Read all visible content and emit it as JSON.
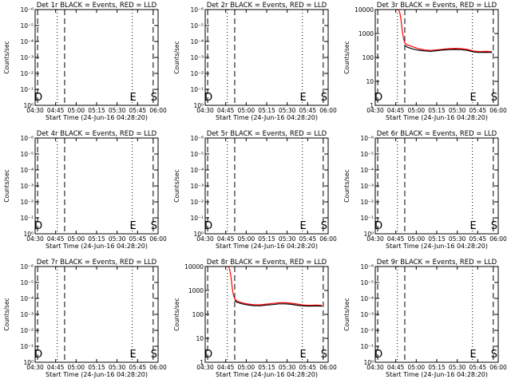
{
  "figure": {
    "background": "#ffffff",
    "events_color": "#000000",
    "lld_color": "#ff0000",
    "panels_per_row": 3
  },
  "chart_data": [
    {
      "type": "line",
      "title": "Det 1r BLACK = Events, RED = LLD",
      "xlabel": "Start Time (24-Jun-16 04:28:20)",
      "ylabel": "Counts/sec",
      "x_ticks": [
        "04:30",
        "04:45",
        "05:00",
        "05:15",
        "05:30",
        "05:45",
        "06:00"
      ],
      "y_ticks": [
        "10⁰",
        "10⁻¹",
        "10⁻²",
        "10⁻³",
        "10⁻⁴",
        "10⁻⁵",
        "10⁻⁶"
      ],
      "y_scale": "log",
      "ylim": [
        0,
        6
      ],
      "xlim": [
        0,
        100
      ],
      "markers": [
        {
          "x": 2,
          "style": "dash",
          "label": "D"
        },
        {
          "x": 18,
          "style": "dot",
          "label": ""
        },
        {
          "x": 24,
          "style": "dash",
          "label": ""
        },
        {
          "x": 79,
          "style": "dot",
          "label": "E"
        },
        {
          "x": 96,
          "style": "dash",
          "label": "S"
        }
      ],
      "series": []
    },
    {
      "type": "line",
      "title": "Det 2r BLACK = Events, RED = LLD",
      "xlabel": "Start Time (24-Jun-16 04:28:20)",
      "ylabel": "Counts/sec",
      "x_ticks": [
        "04:30",
        "04:45",
        "05:00",
        "05:15",
        "05:30",
        "05:45",
        "06:00"
      ],
      "y_ticks": [
        "10⁰",
        "10⁻¹",
        "10⁻²",
        "10⁻³",
        "10⁻⁴",
        "10⁻⁵",
        "10⁻⁶"
      ],
      "y_scale": "log",
      "ylim": [
        0,
        6
      ],
      "xlim": [
        0,
        100
      ],
      "markers": [
        {
          "x": 2,
          "style": "dash",
          "label": "D"
        },
        {
          "x": 18,
          "style": "dot",
          "label": ""
        },
        {
          "x": 24,
          "style": "dash",
          "label": ""
        },
        {
          "x": 79,
          "style": "dot",
          "label": "E"
        },
        {
          "x": 96,
          "style": "dash",
          "label": "S"
        }
      ],
      "series": []
    },
    {
      "type": "line",
      "title": "Det 3r BLACK = Events, RED = LLD",
      "xlabel": "Start Time (24-Jun-16 04:28:20)",
      "ylabel": "Counts/sec",
      "x_ticks": [
        "04:30",
        "04:45",
        "05:00",
        "05:15",
        "05:30",
        "05:45",
        "06:00"
      ],
      "y_ticks": [
        "1",
        "10",
        "100",
        "1000",
        "10000"
      ],
      "y_scale": "log",
      "ylim": [
        0,
        4.15
      ],
      "xlim": [
        0,
        100
      ],
      "markers": [
        {
          "x": 2,
          "style": "dash",
          "label": "D"
        },
        {
          "x": 18,
          "style": "dot",
          "label": ""
        },
        {
          "x": 24,
          "style": "dash",
          "label": ""
        },
        {
          "x": 79,
          "style": "dot",
          "label": "E"
        },
        {
          "x": 96,
          "style": "dash",
          "label": "S"
        }
      ],
      "series": [
        {
          "color": "red",
          "x": [
            19,
            20,
            21,
            22,
            23,
            24,
            26,
            30,
            35,
            40,
            45,
            50,
            55,
            60,
            65,
            70,
            75,
            80,
            85,
            90,
            95
          ],
          "y": [
            4.15,
            4.0,
            3.7,
            3.2,
            2.9,
            2.7,
            2.62,
            2.55,
            2.46,
            2.4,
            2.38,
            2.4,
            2.43,
            2.46,
            2.47,
            2.46,
            2.42,
            2.35,
            2.33,
            2.34,
            2.33
          ]
        },
        {
          "color": "black",
          "x": [
            24,
            26,
            30,
            35,
            40,
            45,
            50,
            55,
            60,
            65,
            70,
            75,
            80,
            85,
            90,
            95
          ],
          "y": [
            2.6,
            2.52,
            2.45,
            2.39,
            2.36,
            2.34,
            2.37,
            2.4,
            2.41,
            2.42,
            2.41,
            2.38,
            2.31,
            2.29,
            2.3,
            2.29
          ]
        }
      ]
    },
    {
      "type": "line",
      "title": "Det 4r BLACK = Events, RED = LLD",
      "xlabel": "Start Time (24-Jun-16 04:28:20)",
      "ylabel": "Counts/sec",
      "x_ticks": [
        "04:30",
        "04:45",
        "05:00",
        "05:15",
        "05:30",
        "05:45",
        "06:00"
      ],
      "y_ticks": [
        "10⁰",
        "10⁻¹",
        "10⁻²",
        "10⁻³",
        "10⁻⁴",
        "10⁻⁵",
        "10⁻⁶"
      ],
      "y_scale": "log",
      "ylim": [
        0,
        6
      ],
      "xlim": [
        0,
        100
      ],
      "markers": [
        {
          "x": 2,
          "style": "dash",
          "label": "D"
        },
        {
          "x": 18,
          "style": "dot",
          "label": ""
        },
        {
          "x": 24,
          "style": "dash",
          "label": ""
        },
        {
          "x": 79,
          "style": "dot",
          "label": "E"
        },
        {
          "x": 96,
          "style": "dash",
          "label": "S"
        }
      ],
      "series": []
    },
    {
      "type": "line",
      "title": "Det 5r BLACK = Events, RED = LLD",
      "xlabel": "Start Time (24-Jun-16 04:28:20)",
      "ylabel": "Counts/sec",
      "x_ticks": [
        "04:30",
        "04:45",
        "05:00",
        "05:15",
        "05:30",
        "05:45",
        "06:00"
      ],
      "y_ticks": [
        "10⁰",
        "10⁻¹",
        "10⁻²",
        "10⁻³",
        "10⁻⁴",
        "10⁻⁵",
        "10⁻⁶"
      ],
      "y_scale": "log",
      "ylim": [
        0,
        6
      ],
      "xlim": [
        0,
        100
      ],
      "markers": [
        {
          "x": 2,
          "style": "dash",
          "label": "D"
        },
        {
          "x": 18,
          "style": "dot",
          "label": ""
        },
        {
          "x": 24,
          "style": "dash",
          "label": ""
        },
        {
          "x": 79,
          "style": "dot",
          "label": "E"
        },
        {
          "x": 96,
          "style": "dash",
          "label": "S"
        }
      ],
      "series": []
    },
    {
      "type": "line",
      "title": "Det 6r BLACK = Events, RED = LLD",
      "xlabel": "Start Time (24-Jun-16 04:28:20)",
      "ylabel": "Counts/sec",
      "x_ticks": [
        "04:30",
        "04:45",
        "05:00",
        "05:15",
        "05:30",
        "05:45",
        "06:00"
      ],
      "y_ticks": [
        "10⁰",
        "10⁻¹",
        "10⁻²",
        "10⁻³",
        "10⁻⁴",
        "10⁻⁵",
        "10⁻⁶"
      ],
      "y_scale": "log",
      "ylim": [
        0,
        6
      ],
      "xlim": [
        0,
        100
      ],
      "markers": [
        {
          "x": 2,
          "style": "dash",
          "label": "D"
        },
        {
          "x": 18,
          "style": "dot",
          "label": ""
        },
        {
          "x": 24,
          "style": "dash",
          "label": ""
        },
        {
          "x": 79,
          "style": "dot",
          "label": "E"
        },
        {
          "x": 96,
          "style": "dash",
          "label": "S"
        }
      ],
      "series": []
    },
    {
      "type": "line",
      "title": "Det 7r BLACK = Events, RED = LLD",
      "xlabel": "Start Time (24-Jun-16 04:28:20)",
      "ylabel": "Counts/sec",
      "x_ticks": [
        "04:30",
        "04:45",
        "05:00",
        "05:15",
        "05:30",
        "05:45",
        "06:00"
      ],
      "y_ticks": [
        "10⁰",
        "10⁻¹",
        "10⁻²",
        "10⁻³",
        "10⁻⁴",
        "10⁻⁵",
        "10⁻⁶"
      ],
      "y_scale": "log",
      "ylim": [
        0,
        6
      ],
      "xlim": [
        0,
        100
      ],
      "markers": [
        {
          "x": 2,
          "style": "dash",
          "label": "D"
        },
        {
          "x": 18,
          "style": "dot",
          "label": ""
        },
        {
          "x": 24,
          "style": "dash",
          "label": ""
        },
        {
          "x": 79,
          "style": "dot",
          "label": "E"
        },
        {
          "x": 96,
          "style": "dash",
          "label": "S"
        }
      ],
      "series": []
    },
    {
      "type": "line",
      "title": "Det 8r BLACK = Events, RED = LLD",
      "xlabel": "Start Time (24-Jun-16 04:28:20)",
      "ylabel": "Counts/sec",
      "x_ticks": [
        "04:30",
        "04:45",
        "05:00",
        "05:15",
        "05:30",
        "05:45",
        "06:00"
      ],
      "y_ticks": [
        "1",
        "10",
        "100",
        "1000",
        "10000"
      ],
      "y_scale": "log",
      "ylim": [
        0,
        4.15
      ],
      "xlim": [
        0,
        100
      ],
      "markers": [
        {
          "x": 2,
          "style": "dash",
          "label": "D"
        },
        {
          "x": 18,
          "style": "dot",
          "label": ""
        },
        {
          "x": 24,
          "style": "dash",
          "label": ""
        },
        {
          "x": 79,
          "style": "dot",
          "label": "E"
        },
        {
          "x": 96,
          "style": "dash",
          "label": "S"
        }
      ],
      "series": [
        {
          "color": "red",
          "x": [
            19,
            20,
            21,
            22,
            23,
            24,
            26,
            30,
            35,
            40,
            45,
            50,
            55,
            60,
            65,
            70,
            75,
            80,
            85,
            90,
            95
          ],
          "y": [
            4.15,
            4.0,
            3.7,
            3.2,
            2.9,
            2.75,
            2.65,
            2.58,
            2.52,
            2.49,
            2.49,
            2.52,
            2.55,
            2.58,
            2.58,
            2.56,
            2.52,
            2.48,
            2.47,
            2.48,
            2.47
          ]
        },
        {
          "color": "black",
          "x": [
            24,
            26,
            30,
            35,
            40,
            45,
            50,
            55,
            60,
            65,
            70,
            75,
            80,
            85,
            90,
            95
          ],
          "y": [
            2.68,
            2.6,
            2.53,
            2.48,
            2.45,
            2.45,
            2.48,
            2.5,
            2.53,
            2.53,
            2.51,
            2.47,
            2.44,
            2.43,
            2.44,
            2.43
          ]
        }
      ]
    },
    {
      "type": "line",
      "title": "Det 9r BLACK = Events, RED = LLD",
      "xlabel": "Start Time (24-Jun-16 04:28:20)",
      "ylabel": "Counts/sec",
      "x_ticks": [
        "04:30",
        "04:45",
        "05:00",
        "05:15",
        "05:30",
        "05:45",
        "06:00"
      ],
      "y_ticks": [
        "10⁰",
        "10⁻¹",
        "10⁻²",
        "10⁻³",
        "10⁻⁴",
        "10⁻⁵",
        "10⁻⁶"
      ],
      "y_scale": "log",
      "ylim": [
        0,
        6
      ],
      "xlim": [
        0,
        100
      ],
      "markers": [
        {
          "x": 2,
          "style": "dash",
          "label": "D"
        },
        {
          "x": 18,
          "style": "dot",
          "label": ""
        },
        {
          "x": 24,
          "style": "dash",
          "label": ""
        },
        {
          "x": 79,
          "style": "dot",
          "label": "E"
        },
        {
          "x": 96,
          "style": "dash",
          "label": "S"
        }
      ],
      "series": []
    }
  ]
}
